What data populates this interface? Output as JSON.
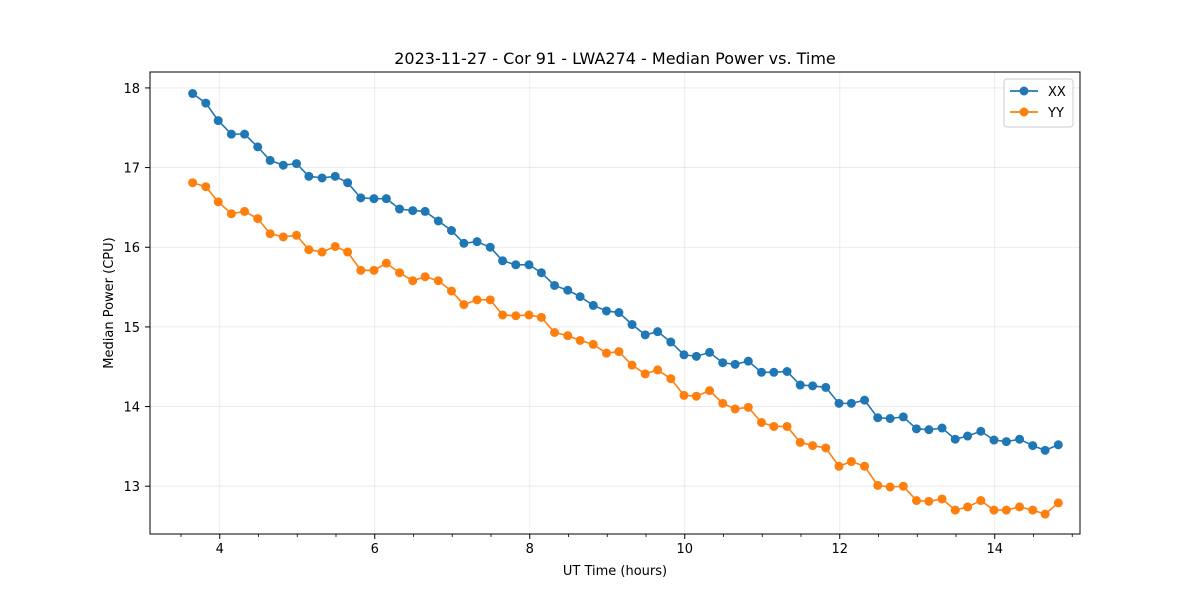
{
  "chart_data": {
    "type": "line",
    "title": "2023-11-27 - Cor 91 - LWA274 - Median Power vs. Time",
    "xlabel": "UT Time (hours)",
    "ylabel": "Median Power (CPU)",
    "xlim": [
      3.1,
      15.1
    ],
    "ylim": [
      12.4,
      18.2
    ],
    "xticks": [
      4,
      6,
      8,
      10,
      12,
      14
    ],
    "xtick_labels": [
      "4",
      "6",
      "8",
      "10",
      "12",
      "14"
    ],
    "yticks": [
      13,
      14,
      15,
      16,
      17,
      18
    ],
    "ytick_labels": [
      "13",
      "14",
      "15",
      "16",
      "17",
      "18"
    ],
    "grid": true,
    "legend_position": "top-right",
    "x": [
      3.65,
      3.82,
      3.98,
      4.15,
      4.32,
      4.49,
      4.65,
      4.82,
      4.99,
      5.15,
      5.32,
      5.49,
      5.65,
      5.82,
      5.99,
      6.15,
      6.32,
      6.49,
      6.65,
      6.82,
      6.99,
      7.15,
      7.32,
      7.49,
      7.65,
      7.82,
      7.99,
      8.15,
      8.32,
      8.49,
      8.65,
      8.82,
      8.99,
      9.15,
      9.32,
      9.49,
      9.65,
      9.82,
      9.99,
      10.15,
      10.32,
      10.49,
      10.65,
      10.82,
      10.99,
      11.15,
      11.32,
      11.49,
      11.65,
      11.82,
      11.99,
      12.15,
      12.32,
      12.49,
      12.65,
      12.82,
      12.99,
      13.15,
      13.32,
      13.49,
      13.65,
      13.82,
      13.99,
      14.15,
      14.32,
      14.49,
      14.65,
      14.82
    ],
    "series": [
      {
        "name": "XX",
        "color": "#1f77b4",
        "values": [
          17.93,
          17.81,
          17.59,
          17.42,
          17.42,
          17.26,
          17.09,
          17.03,
          17.05,
          16.89,
          16.87,
          16.89,
          16.81,
          16.62,
          16.61,
          16.61,
          16.48,
          16.46,
          16.45,
          16.33,
          16.21,
          16.05,
          16.07,
          16.0,
          15.83,
          15.78,
          15.78,
          15.68,
          15.52,
          15.46,
          15.38,
          15.27,
          15.2,
          15.18,
          15.03,
          14.9,
          14.94,
          14.81,
          14.65,
          14.63,
          14.68,
          14.55,
          14.53,
          14.57,
          14.43,
          14.43,
          14.44,
          14.27,
          14.26,
          14.24,
          14.04,
          14.04,
          14.08,
          13.86,
          13.85,
          13.87,
          13.72,
          13.71,
          13.73,
          13.59,
          13.63,
          13.69,
          13.58,
          13.56,
          13.59,
          13.51,
          13.45,
          13.52
        ]
      },
      {
        "name": "YY",
        "color": "#ff7f0e",
        "values": [
          16.81,
          16.76,
          16.57,
          16.42,
          16.45,
          16.36,
          16.17,
          16.13,
          16.15,
          15.97,
          15.94,
          16.01,
          15.94,
          15.71,
          15.71,
          15.8,
          15.68,
          15.58,
          15.63,
          15.58,
          15.45,
          15.28,
          15.34,
          15.34,
          15.15,
          15.14,
          15.15,
          15.12,
          14.93,
          14.89,
          14.83,
          14.78,
          14.67,
          14.69,
          14.52,
          14.41,
          14.46,
          14.35,
          14.14,
          14.13,
          14.2,
          14.04,
          13.97,
          13.99,
          13.8,
          13.75,
          13.75,
          13.55,
          13.51,
          13.48,
          13.25,
          13.31,
          13.25,
          13.01,
          12.99,
          13.0,
          12.82,
          12.81,
          12.84,
          12.7,
          12.74,
          12.82,
          12.7,
          12.7,
          12.74,
          12.7,
          12.65,
          12.79
        ]
      }
    ]
  }
}
